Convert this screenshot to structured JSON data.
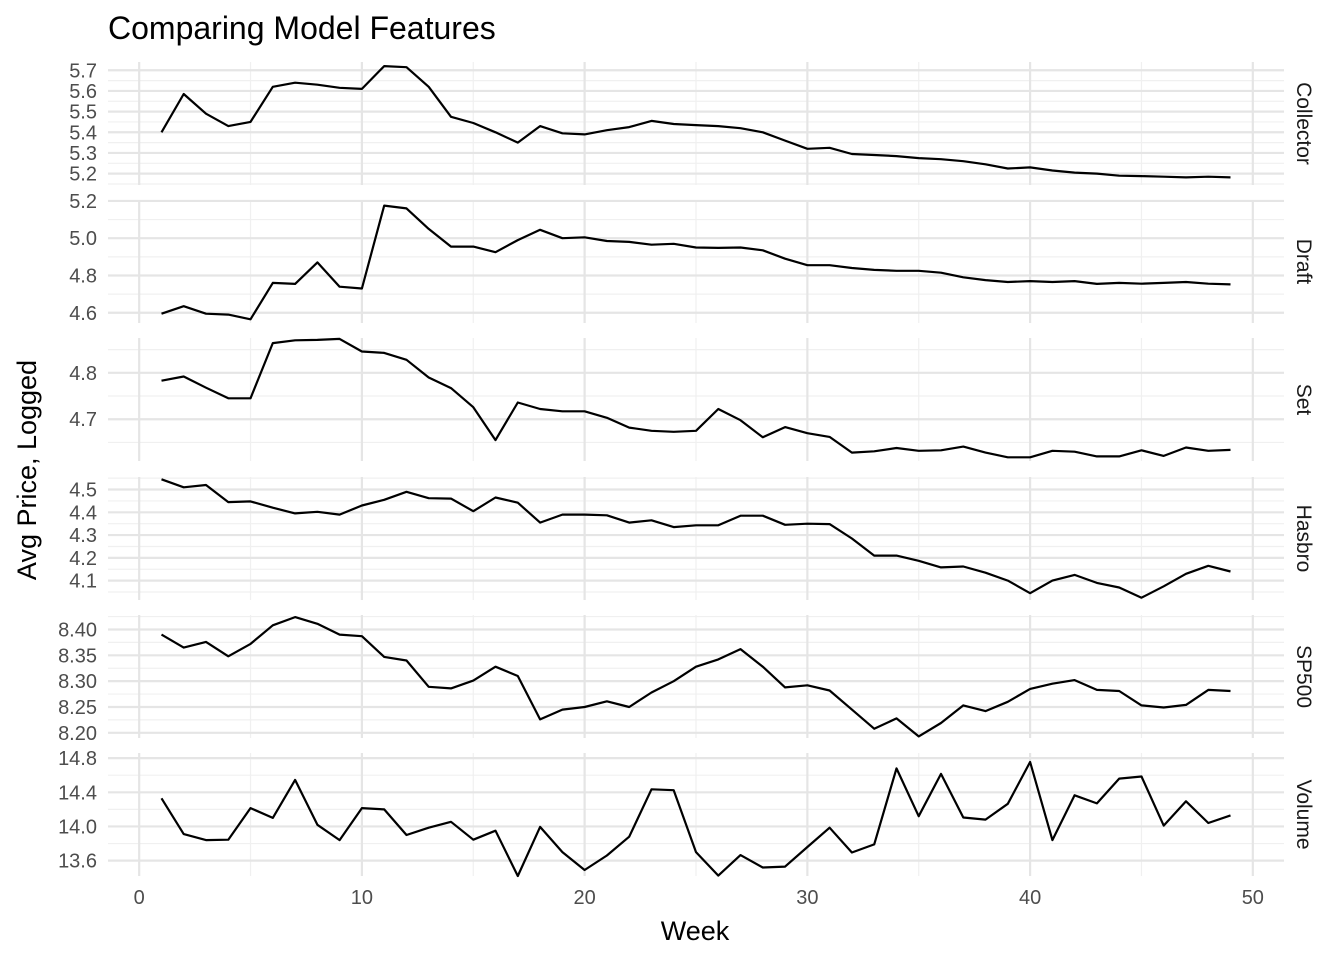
{
  "chart_data": {
    "type": "line",
    "title": "Comparing Model Features",
    "xlabel": "Week",
    "ylabel": "Avg Price, Logged",
    "xlim": [
      -1.4,
      51.4
    ],
    "x_ticks": [
      0,
      10,
      20,
      30,
      40,
      50
    ],
    "x_tick_labels": [
      "0",
      "10",
      "20",
      "30",
      "40",
      "50"
    ],
    "grid": true,
    "x": [
      1,
      2,
      3,
      4,
      5,
      6,
      7,
      8,
      9,
      10,
      11,
      12,
      13,
      14,
      15,
      16,
      17,
      18,
      19,
      20,
      21,
      22,
      23,
      24,
      25,
      26,
      27,
      28,
      29,
      30,
      31,
      32,
      33,
      34,
      35,
      36,
      37,
      38,
      39,
      40,
      41,
      42,
      43,
      44,
      45,
      46,
      47,
      48,
      49
    ],
    "panels": [
      {
        "name": "Collector",
        "ylim": [
          5.145,
          5.74
        ],
        "y_ticks": [
          5.2,
          5.3,
          5.4,
          5.5,
          5.6,
          5.7
        ],
        "y_tick_labels": [
          "5.2",
          "5.3",
          "5.4",
          "5.5",
          "5.6",
          "5.7"
        ],
        "values": [
          5.4,
          5.585,
          5.49,
          5.43,
          5.45,
          5.62,
          5.64,
          5.63,
          5.615,
          5.61,
          5.72,
          5.715,
          5.62,
          5.475,
          5.445,
          5.4,
          5.35,
          5.43,
          5.395,
          5.39,
          5.41,
          5.425,
          5.455,
          5.44,
          5.435,
          5.43,
          5.42,
          5.4,
          5.36,
          5.32,
          5.325,
          5.295,
          5.29,
          5.285,
          5.275,
          5.27,
          5.26,
          5.245,
          5.225,
          5.23,
          5.215,
          5.205,
          5.2,
          5.19,
          5.188,
          5.185,
          5.182,
          5.185,
          5.182
        ]
      },
      {
        "name": "Draft",
        "ylim": [
          4.545,
          5.205
        ],
        "y_ticks": [
          4.6,
          4.8,
          5.0,
          5.2
        ],
        "y_tick_labels": [
          "4.6",
          "4.8",
          "5.0",
          "5.2"
        ],
        "values": [
          4.595,
          4.635,
          4.595,
          4.59,
          4.565,
          4.76,
          4.755,
          4.87,
          4.74,
          4.73,
          5.175,
          5.16,
          5.05,
          4.955,
          4.955,
          4.925,
          4.99,
          5.045,
          5.0,
          5.005,
          4.985,
          4.98,
          4.965,
          4.97,
          4.95,
          4.948,
          4.95,
          4.935,
          4.89,
          4.855,
          4.855,
          4.84,
          4.83,
          4.825,
          4.825,
          4.815,
          4.79,
          4.775,
          4.765,
          4.77,
          4.765,
          4.77,
          4.755,
          4.76,
          4.756,
          4.76,
          4.765,
          4.756,
          4.752
        ]
      },
      {
        "name": "Set",
        "ylim": [
          4.61,
          4.875
        ],
        "y_ticks": [
          4.7,
          4.8
        ],
        "y_tick_labels": [
          "4.7",
          "4.8"
        ],
        "values": [
          4.783,
          4.792,
          4.768,
          4.745,
          4.745,
          4.864,
          4.87,
          4.871,
          4.873,
          4.846,
          4.843,
          4.828,
          4.79,
          4.767,
          4.726,
          4.655,
          4.736,
          4.722,
          4.717,
          4.717,
          4.703,
          4.682,
          4.675,
          4.673,
          4.675,
          4.722,
          4.698,
          4.661,
          4.683,
          4.67,
          4.662,
          4.628,
          4.631,
          4.638,
          4.632,
          4.633,
          4.641,
          4.628,
          4.618,
          4.618,
          4.632,
          4.63,
          4.62,
          4.62,
          4.633,
          4.621,
          4.639,
          4.632,
          4.634
        ]
      },
      {
        "name": "Hasbro",
        "ylim": [
          4.015,
          4.555
        ],
        "y_ticks": [
          4.1,
          4.2,
          4.3,
          4.4,
          4.5
        ],
        "y_tick_labels": [
          "4.1",
          "4.2",
          "4.3",
          "4.4",
          "4.5"
        ],
        "values": [
          4.545,
          4.51,
          4.52,
          4.445,
          4.448,
          4.42,
          4.395,
          4.402,
          4.39,
          4.43,
          4.455,
          4.49,
          4.462,
          4.46,
          4.405,
          4.465,
          4.442,
          4.355,
          4.39,
          4.39,
          4.387,
          4.355,
          4.365,
          4.335,
          4.343,
          4.343,
          4.385,
          4.385,
          4.345,
          4.35,
          4.348,
          4.285,
          4.21,
          4.21,
          4.187,
          4.158,
          4.162,
          4.135,
          4.1,
          4.045,
          4.1,
          4.125,
          4.09,
          4.07,
          4.025,
          4.075,
          4.13,
          4.165,
          4.14
        ]
      },
      {
        "name": "SP500",
        "ylim": [
          8.19,
          8.428
        ],
        "y_ticks": [
          8.2,
          8.25,
          8.3,
          8.35,
          8.4
        ],
        "y_tick_labels": [
          "8.20",
          "8.25",
          "8.30",
          "8.35",
          "8.40"
        ],
        "values": [
          8.39,
          8.365,
          8.376,
          8.348,
          8.372,
          8.408,
          8.424,
          8.411,
          8.39,
          8.387,
          8.347,
          8.34,
          8.289,
          8.286,
          8.301,
          8.328,
          8.31,
          8.226,
          8.245,
          8.25,
          8.261,
          8.25,
          8.278,
          8.3,
          8.328,
          8.342,
          8.362,
          8.328,
          8.288,
          8.292,
          8.282,
          8.245,
          8.208,
          8.228,
          8.193,
          8.219,
          8.253,
          8.242,
          8.26,
          8.285,
          8.295,
          8.302,
          8.283,
          8.281,
          8.253,
          8.249,
          8.254,
          8.283,
          8.281
        ]
      },
      {
        "name": "Volume",
        "ylim": [
          13.42,
          14.86
        ],
        "y_ticks": [
          13.6,
          14.0,
          14.4,
          14.8
        ],
        "y_tick_labels": [
          "13.6",
          "14.0",
          "14.4",
          "14.8"
        ],
        "values": [
          14.33,
          13.91,
          13.84,
          13.845,
          14.215,
          14.1,
          14.545,
          14.02,
          13.84,
          14.215,
          14.2,
          13.9,
          13.985,
          14.055,
          13.845,
          13.95,
          13.42,
          13.995,
          13.7,
          13.49,
          13.66,
          13.88,
          14.435,
          14.425,
          13.7,
          13.425,
          13.665,
          13.52,
          13.53,
          13.76,
          13.985,
          13.695,
          13.79,
          14.68,
          14.12,
          14.615,
          14.105,
          14.08,
          14.265,
          14.755,
          13.84,
          14.365,
          14.27,
          14.56,
          14.585,
          14.01,
          14.295,
          14.04,
          14.13
        ]
      }
    ]
  }
}
